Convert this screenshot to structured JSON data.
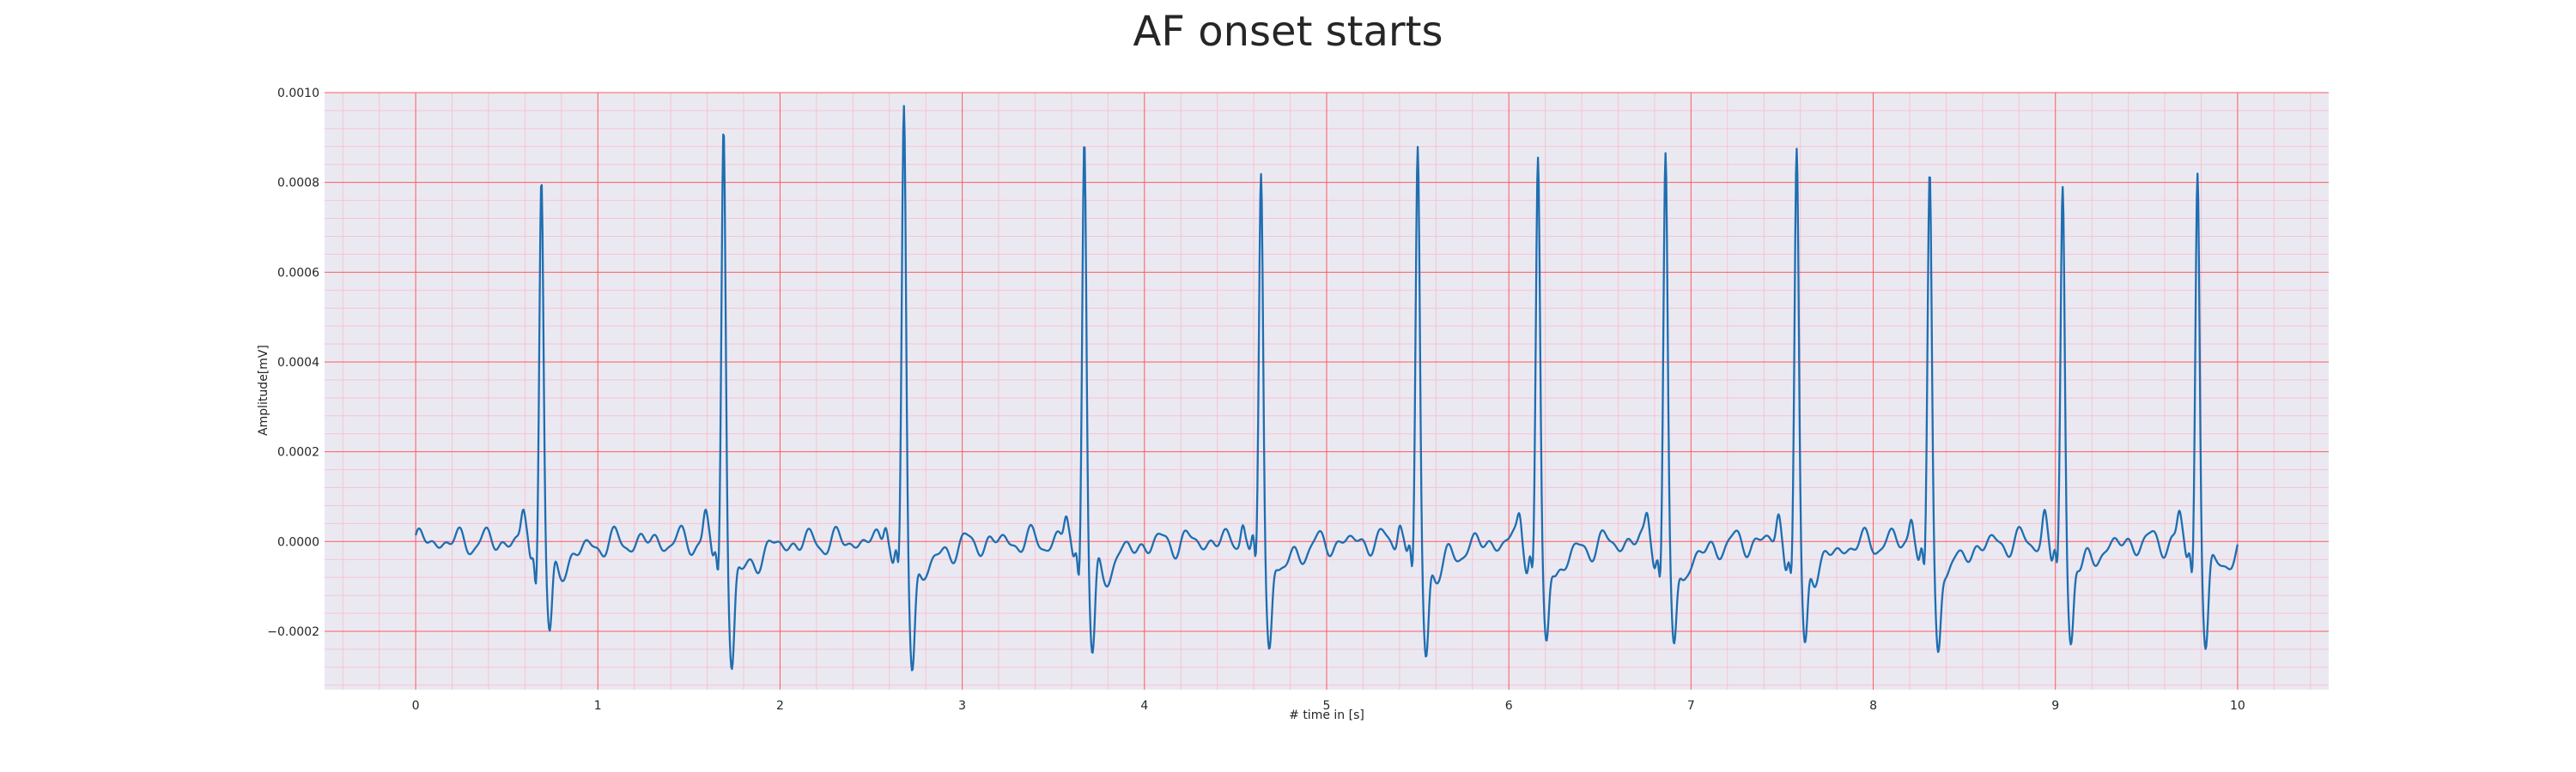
{
  "chart_data": {
    "type": "line",
    "title": "AF onset starts",
    "xlabel": "# time in [s]",
    "ylabel": "Amplitude[mV]",
    "xlim": [
      -0.5,
      10.5
    ],
    "ylim": [
      -0.00033,
      0.001
    ],
    "x_ticks": [
      0,
      1,
      2,
      3,
      4,
      5,
      6,
      7,
      8,
      9,
      10
    ],
    "y_ticks": [
      -0.0002,
      0.0,
      0.0002,
      0.0004,
      0.0006,
      0.0008,
      0.001
    ],
    "y_tick_labels": [
      "−0.0002",
      "0.0000",
      "0.0002",
      "0.0004",
      "0.0006",
      "0.0008",
      "0.0010"
    ],
    "grid": true,
    "minor_grid": true,
    "series": [
      {
        "name": "",
        "color": "#1f6eb0",
        "sample_rate_hz": 250,
        "duration_s": 10,
        "r_peaks_s": [
          0.69,
          1.69,
          2.68,
          3.67,
          4.64,
          5.5,
          6.16,
          6.86,
          7.58,
          8.31,
          9.04,
          9.78
        ],
        "r_peak_values": [
          0.00082,
          0.00092,
          0.000945,
          0.00091,
          0.000835,
          0.000875,
          0.000845,
          0.000855,
          0.00085,
          0.00081,
          0.000785,
          0.000825
        ],
        "s_trough_values": [
          -0.00022,
          -0.00026,
          -0.000265,
          -0.000258,
          -0.00023,
          -0.00025,
          -0.00023,
          -0.00024,
          -0.00023,
          -0.00023,
          -0.00021,
          -0.00022
        ]
      }
    ]
  },
  "colors": {
    "plot_background": "#eae9f2",
    "major_grid": "#ff5a5a",
    "minor_grid": "#f7c3cf",
    "line": "#1f6eb0",
    "text": "#262626"
  }
}
